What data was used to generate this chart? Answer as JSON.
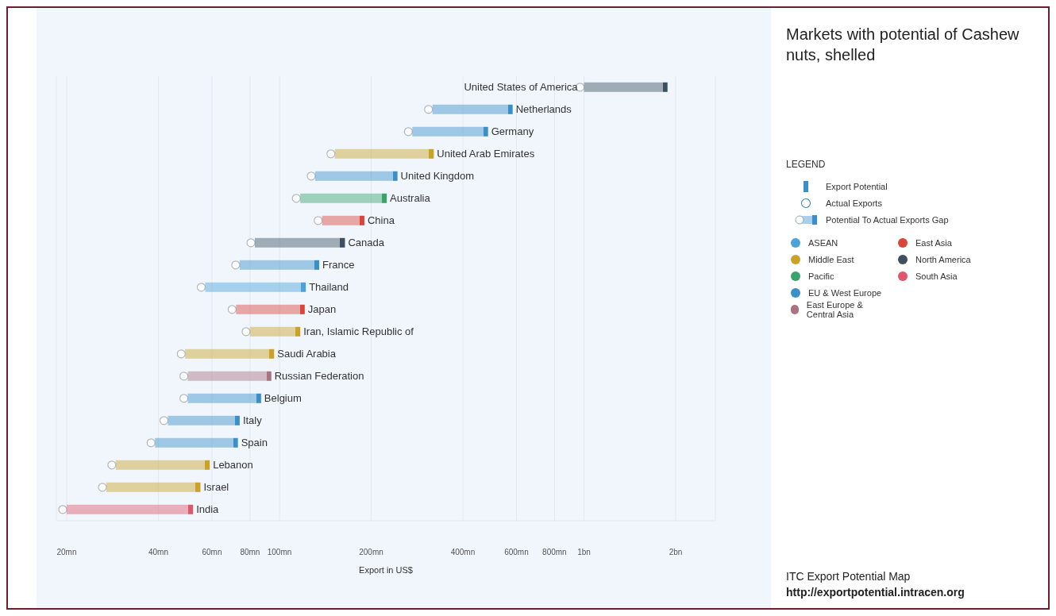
{
  "chart_data": {
    "type": "bar",
    "orientation": "horizontal",
    "log": "x",
    "title": "Markets with potential of Cashew nuts, shelled",
    "xlabel": "Export in US$",
    "legend_title": "LEGEND",
    "legend": "right",
    "grid": "x",
    "marker": "circle",
    "categories": [
      "United States of America",
      "Netherlands",
      "Germany",
      "United Arab Emirates",
      "United Kingdom",
      "Australia",
      "China",
      "Canada",
      "France",
      "Thailand",
      "Japan",
      "Iran, Islamic Republic of",
      "Saudi Arabia",
      "Russian Federation",
      "Belgium",
      "Italy",
      "Spain",
      "Lebanon",
      "Israel",
      "India"
    ],
    "xlim": [
      18500000,
      2700000000
    ],
    "xticks": [
      {
        "value": 20000000,
        "label": "20mn"
      },
      {
        "value": 40000000,
        "label": "40mn"
      },
      {
        "value": 60000000,
        "label": "60mn"
      },
      {
        "value": 80000000,
        "label": "80mn"
      },
      {
        "value": 100000000,
        "label": "100mn"
      },
      {
        "value": 200000000,
        "label": "200mn"
      },
      {
        "value": 400000000,
        "label": "400mn"
      },
      {
        "value": 600000000,
        "label": "600mn"
      },
      {
        "value": 800000000,
        "label": "800mn"
      },
      {
        "value": 1000000000,
        "label": "1bn"
      },
      {
        "value": 2000000000,
        "label": "2bn"
      }
    ],
    "series": [
      {
        "name": "ASEAN",
        "color": "#4aa3d9",
        "base": [
          null,
          null,
          null,
          null,
          null,
          null,
          null,
          null,
          null,
          57000000,
          null,
          null,
          null,
          null,
          null,
          null,
          null,
          null,
          null,
          null
        ],
        "values": [
          null,
          null,
          null,
          null,
          null,
          null,
          null,
          null,
          null,
          65000000,
          null,
          null,
          null,
          null,
          null,
          null,
          null,
          null,
          null,
          null
        ]
      },
      {
        "name": "Middle East",
        "color": "#c9a227",
        "base": [
          null,
          null,
          null,
          152000000,
          null,
          null,
          null,
          null,
          null,
          null,
          null,
          80000000,
          49000000,
          null,
          null,
          null,
          null,
          29000000,
          27000000,
          null
        ],
        "values": [
          null,
          null,
          null,
          169000000,
          null,
          null,
          null,
          null,
          null,
          null,
          null,
          37000000,
          47000000,
          null,
          null,
          null,
          null,
          30000000,
          28000000,
          null
        ]
      },
      {
        "name": "Pacific",
        "color": "#3aa36b",
        "base": [
          null,
          null,
          null,
          null,
          null,
          117000000,
          null,
          null,
          null,
          null,
          null,
          null,
          null,
          null,
          null,
          null,
          null,
          null,
          null,
          null
        ],
        "values": [
          null,
          null,
          null,
          null,
          null,
          108000000,
          null,
          null,
          null,
          null,
          null,
          null,
          null,
          null,
          null,
          null,
          null,
          null,
          null,
          null
        ]
      },
      {
        "name": "EU & West Europe",
        "color": "#3a8fc8",
        "base": [
          null,
          318000000,
          273000000,
          null,
          131000000,
          null,
          null,
          null,
          74000000,
          null,
          null,
          null,
          null,
          null,
          50000000,
          43000000,
          39000000,
          null,
          null,
          null
        ],
        "values": [
          null,
          265000000,
          211000000,
          null,
          113000000,
          null,
          null,
          null,
          61000000,
          null,
          null,
          null,
          null,
          null,
          37000000,
          31000000,
          34000000,
          null,
          null,
          null
        ]
      },
      {
        "name": "East Europe & Central Asia",
        "color": "#a9737f",
        "base": [
          null,
          null,
          null,
          null,
          null,
          null,
          null,
          null,
          null,
          null,
          null,
          null,
          null,
          50000000,
          null,
          null,
          null,
          null,
          null,
          null
        ],
        "values": [
          null,
          null,
          null,
          null,
          null,
          null,
          null,
          null,
          null,
          null,
          null,
          null,
          null,
          44000000,
          null,
          null,
          null,
          null,
          null,
          null
        ]
      },
      {
        "name": "East Asia",
        "color": "#d9453a",
        "base": [
          null,
          null,
          null,
          null,
          null,
          null,
          138000000,
          null,
          null,
          null,
          72000000,
          null,
          null,
          null,
          null,
          null,
          null,
          null,
          null,
          null
        ],
        "values": [
          null,
          null,
          null,
          null,
          null,
          null,
          52000000,
          null,
          null,
          null,
          49000000,
          null,
          null,
          null,
          null,
          null,
          null,
          null,
          null,
          null
        ]
      },
      {
        "name": "North America",
        "color": "#3d5060",
        "base": [
          1000000000,
          null,
          null,
          null,
          null,
          null,
          null,
          83000000,
          null,
          null,
          null,
          null,
          null,
          null,
          null,
          null,
          null,
          null,
          null,
          null
        ],
        "values": [
          880000000,
          null,
          null,
          null,
          null,
          null,
          null,
          81000000,
          null,
          null,
          null,
          null,
          null,
          null,
          null,
          null,
          null,
          null,
          null,
          null
        ]
      },
      {
        "name": "South Asia",
        "color": "#e0566a",
        "base": [
          null,
          null,
          null,
          null,
          null,
          null,
          null,
          null,
          null,
          null,
          null,
          null,
          null,
          null,
          null,
          null,
          null,
          null,
          null,
          20000000
        ],
        "values": [
          null,
          null,
          null,
          null,
          null,
          null,
          null,
          null,
          null,
          null,
          null,
          null,
          null,
          null,
          null,
          null,
          null,
          null,
          null,
          32000000
        ]
      }
    ],
    "annotations": [
      "Export Potential",
      "Actual Exports",
      "Potential To Actual Exports Gap",
      "ITC Export Potential Map",
      "http://exportpotential.intracen.org"
    ]
  }
}
